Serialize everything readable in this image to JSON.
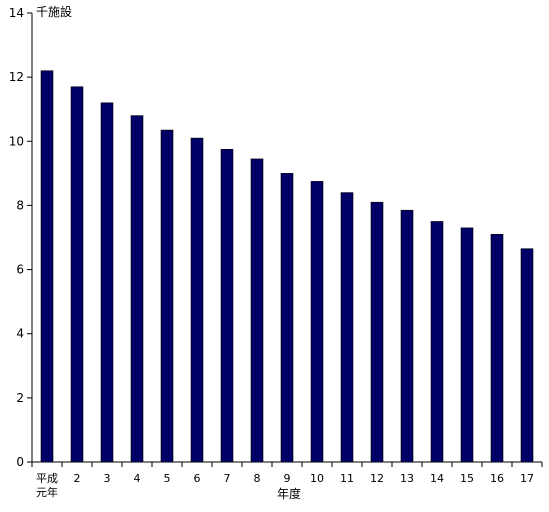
{
  "chart_data": {
    "type": "bar",
    "title": "",
    "ylabel": "千施設",
    "xlabel": "年度",
    "categories": [
      "平成元年",
      "2",
      "3",
      "4",
      "5",
      "6",
      "7",
      "8",
      "9",
      "10",
      "11",
      "12",
      "13",
      "14",
      "15",
      "16",
      "17"
    ],
    "category_lines": [
      [
        "平成",
        "元年"
      ],
      [
        "2"
      ],
      [
        "3"
      ],
      [
        "4"
      ],
      [
        "5"
      ],
      [
        "6"
      ],
      [
        "7"
      ],
      [
        "8"
      ],
      [
        "9"
      ],
      [
        "10"
      ],
      [
        "11"
      ],
      [
        "12"
      ],
      [
        "13"
      ],
      [
        "14"
      ],
      [
        "15"
      ],
      [
        "16"
      ],
      [
        "17"
      ]
    ],
    "values": [
      12.2,
      11.7,
      11.2,
      10.8,
      10.35,
      10.1,
      9.75,
      9.45,
      9.0,
      8.75,
      8.4,
      8.1,
      7.85,
      7.5,
      7.3,
      7.1,
      6.65
    ],
    "ylim": [
      0,
      14
    ],
    "yticks": [
      0,
      2,
      4,
      6,
      8,
      10,
      12,
      14
    ],
    "grid": false,
    "legend": "none",
    "bar_color": "#000066"
  }
}
